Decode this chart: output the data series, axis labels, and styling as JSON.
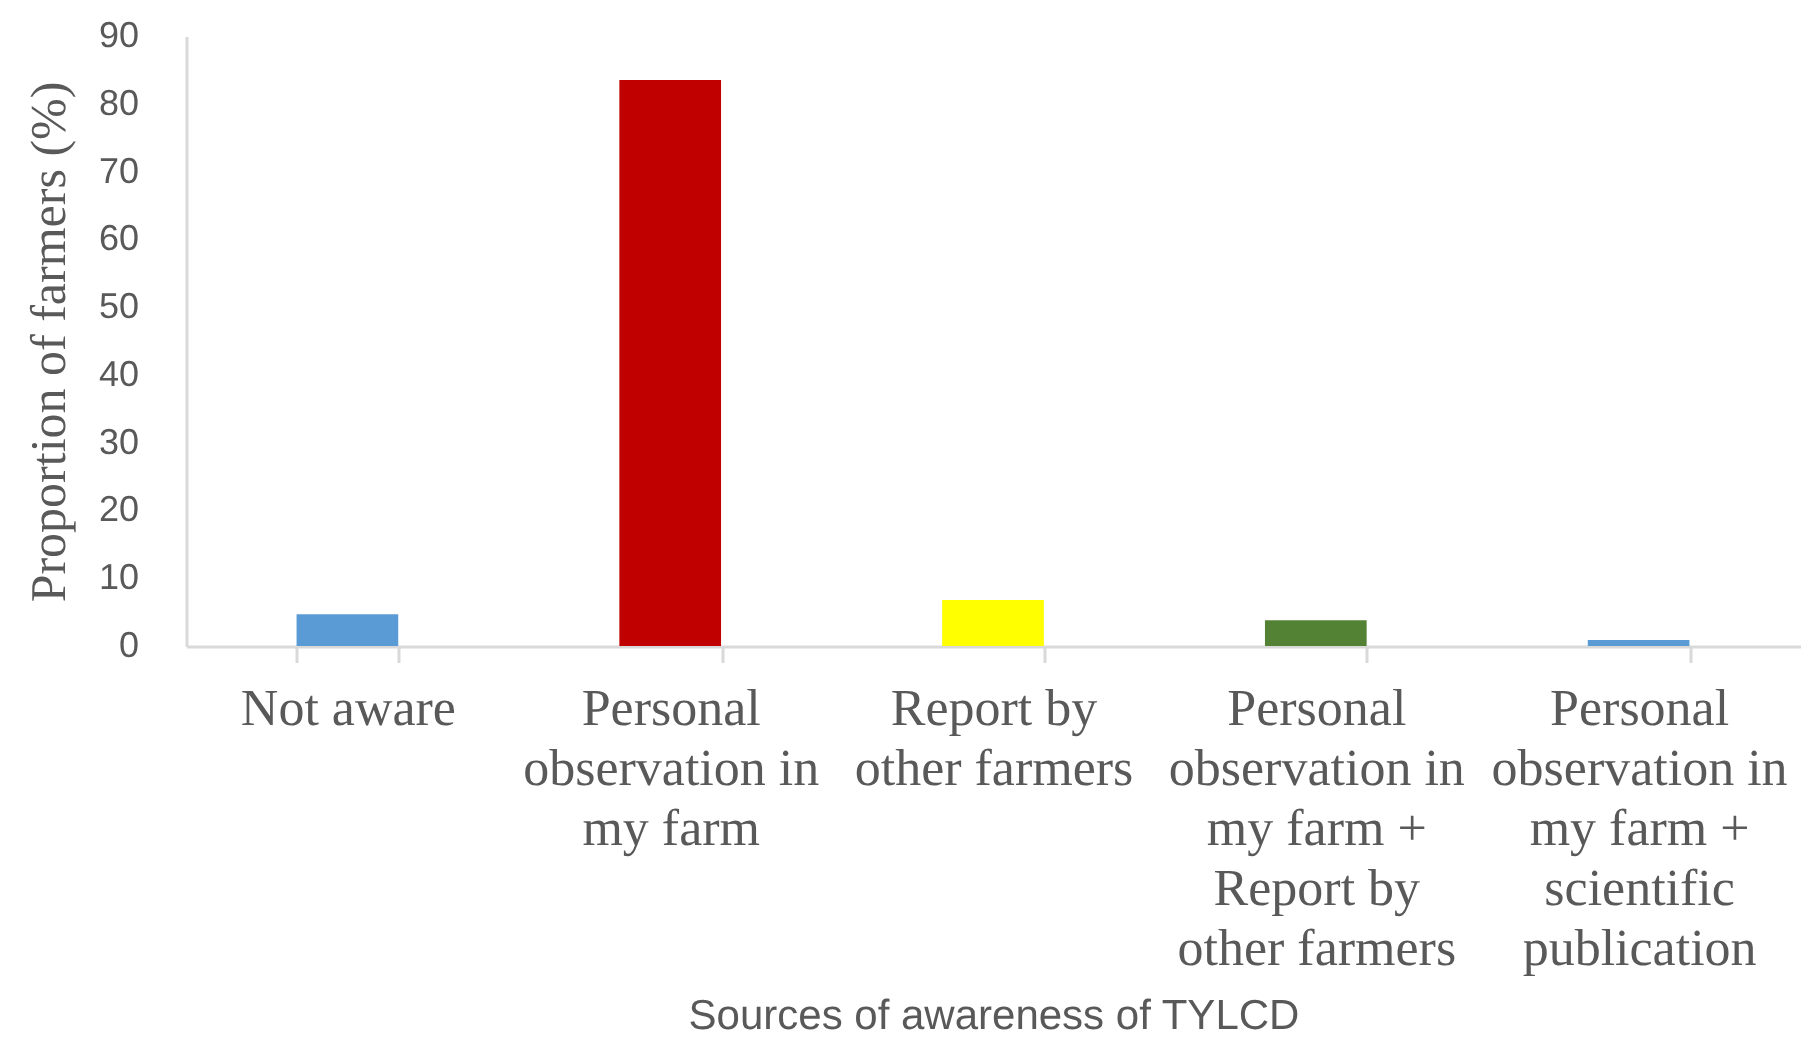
{
  "chart_data": {
    "type": "bar",
    "xlabel": "Sources of awareness of TYLCD",
    "ylabel": "Proportion of farmers (%)",
    "categories": [
      "Not aware",
      "Personal observation in my farm",
      "Report by other farmers",
      "Personal observation in my farm + Report by other farmers",
      "Personal observation in my farm + scientific publication"
    ],
    "values": [
      4.7,
      83.5,
      6.8,
      3.8,
      0.9
    ],
    "colors": [
      "#5b9bd5",
      "#c00000",
      "#ffff00",
      "#548235",
      "#5b9bd5"
    ],
    "ylim": [
      0,
      90
    ],
    "yticks": [
      0,
      10,
      20,
      30,
      40,
      50,
      60,
      70,
      80,
      90
    ],
    "grid": false
  }
}
